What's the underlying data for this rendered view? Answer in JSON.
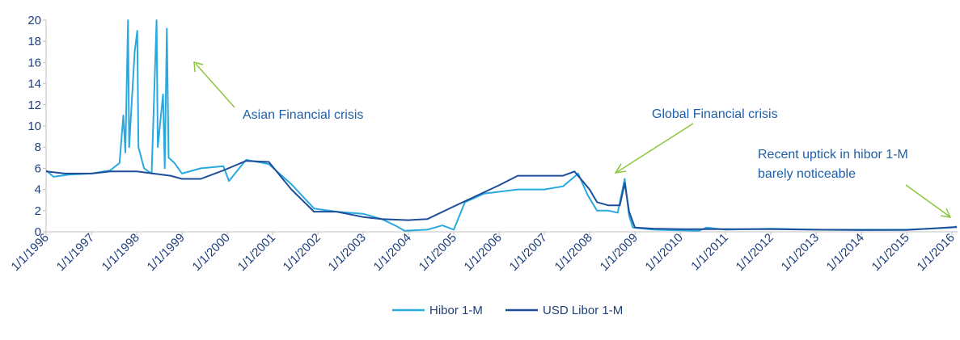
{
  "chart_data": {
    "type": "line",
    "xlim": [
      "1996-01-01",
      "2016-02-15"
    ],
    "xticks": [
      {
        "value": "1996-01-01",
        "label": "1/1/1996"
      },
      {
        "value": "1997-01-01",
        "label": "1/1/1997"
      },
      {
        "value": "1998-01-01",
        "label": "1/1/1998"
      },
      {
        "value": "1999-01-01",
        "label": "1/1/1999"
      },
      {
        "value": "2000-01-01",
        "label": "1/1/2000"
      },
      {
        "value": "2001-01-01",
        "label": "1/1/2001"
      },
      {
        "value": "2002-01-01",
        "label": "1/1/2002"
      },
      {
        "value": "2003-01-01",
        "label": "1/1/2003"
      },
      {
        "value": "2004-01-01",
        "label": "1/1/2004"
      },
      {
        "value": "2005-01-01",
        "label": "1/1/2005"
      },
      {
        "value": "2006-01-01",
        "label": "1/1/2006"
      },
      {
        "value": "2007-01-01",
        "label": "1/1/2007"
      },
      {
        "value": "2008-01-01",
        "label": "1/1/2008"
      },
      {
        "value": "2009-01-01",
        "label": "1/1/2009"
      },
      {
        "value": "2010-01-01",
        "label": "1/1/2010"
      },
      {
        "value": "2011-01-01",
        "label": "1/1/2011"
      },
      {
        "value": "2012-01-01",
        "label": "1/1/2012"
      },
      {
        "value": "2013-01-01",
        "label": "1/1/2013"
      },
      {
        "value": "2014-01-01",
        "label": "1/1/2014"
      },
      {
        "value": "2015-01-01",
        "label": "1/1/2015"
      },
      {
        "value": "2016-01-01",
        "label": "1/1/2016"
      }
    ],
    "ylim": [
      0,
      20
    ],
    "yticks": [
      0,
      2,
      4,
      6,
      8,
      10,
      12,
      14,
      16,
      18,
      20
    ],
    "grid": false,
    "legend": "bottom",
    "annotations": [
      "Asian Financial crisis",
      "Global Financial crisis",
      "Recent uptick in hibor 1-M",
      "barely noticeable"
    ],
    "series": [
      {
        "name": "Hibor 1-M",
        "color": "#29a9e0",
        "x": [
          "1996-01-01",
          "1996-03-01",
          "1996-07-01",
          "1997-01-01",
          "1997-06-01",
          "1997-08-15",
          "1997-09-15",
          "1997-10-01",
          "1997-10-23",
          "1997-11-01",
          "1997-12-15",
          "1998-01-05",
          "1998-01-15",
          "1998-03-01",
          "1998-05-01",
          "1998-06-10",
          "1998-06-20",
          "1998-08-01",
          "1998-08-15",
          "1998-09-01",
          "1998-09-15",
          "1998-11-01",
          "1999-01-01",
          "1999-06-01",
          "1999-12-01",
          "2000-01-15",
          "2000-06-01",
          "2000-12-01",
          "2001-06-01",
          "2001-12-01",
          "2002-06-01",
          "2003-01-01",
          "2003-06-01",
          "2003-10-01",
          "2003-12-01",
          "2004-06-01",
          "2004-10-01",
          "2005-01-01",
          "2005-04-01",
          "2005-09-01",
          "2006-06-01",
          "2007-01-01",
          "2007-06-01",
          "2007-10-01",
          "2007-12-15",
          "2008-03-01",
          "2008-06-01",
          "2008-08-15",
          "2008-10-10",
          "2008-11-15",
          "2008-12-15",
          "2009-06-01",
          "2010-06-01",
          "2010-08-01",
          "2011-01-01",
          "2012-01-01",
          "2013-01-01",
          "2014-01-01",
          "2015-01-01",
          "2016-01-01",
          "2016-02-10"
        ],
        "values": [
          5.8,
          5.2,
          5.4,
          5.5,
          5.8,
          6.5,
          11.0,
          7.5,
          20,
          8,
          17,
          19,
          8,
          6,
          5.5,
          20,
          8,
          13,
          6,
          19.2,
          7,
          6.5,
          5.5,
          6,
          6.2,
          4.8,
          6.8,
          6.4,
          4.5,
          2.2,
          1.9,
          1.7,
          1.2,
          0.5,
          0.1,
          0.2,
          0.6,
          0.2,
          2.8,
          3.6,
          4.0,
          4.0,
          4.3,
          5.5,
          3.5,
          2.0,
          2.0,
          1.8,
          5.0,
          1.5,
          0.4,
          0.2,
          0.1,
          0.4,
          0.2,
          0.3,
          0.2,
          0.2,
          0.2,
          0.4,
          0.5
        ]
      },
      {
        "name": "USD Libor 1-M",
        "color": "#1f4e99",
        "x": [
          "1996-01-01",
          "1996-06-01",
          "1997-01-01",
          "1997-06-01",
          "1998-01-01",
          "1998-10-01",
          "1999-01-01",
          "1999-06-01",
          "1999-12-01",
          "2000-06-01",
          "2000-12-01",
          "2001-06-01",
          "2001-12-01",
          "2002-06-01",
          "2003-01-01",
          "2003-06-01",
          "2004-01-01",
          "2004-06-01",
          "2005-01-01",
          "2006-01-01",
          "2006-06-01",
          "2007-06-01",
          "2007-09-01",
          "2008-01-01",
          "2008-03-01",
          "2008-06-01",
          "2008-09-01",
          "2008-10-10",
          "2008-11-15",
          "2009-01-01",
          "2009-06-01",
          "2010-01-01",
          "2011-01-01",
          "2012-01-01",
          "2013-01-01",
          "2014-01-01",
          "2015-01-01",
          "2016-01-01",
          "2016-02-10"
        ],
        "values": [
          5.7,
          5.5,
          5.5,
          5.7,
          5.7,
          5.3,
          5.0,
          5.0,
          5.8,
          6.7,
          6.6,
          4.0,
          1.9,
          1.9,
          1.4,
          1.2,
          1.1,
          1.2,
          2.4,
          4.4,
          5.3,
          5.3,
          5.7,
          4.0,
          2.8,
          2.5,
          2.5,
          4.6,
          1.9,
          0.4,
          0.3,
          0.25,
          0.25,
          0.25,
          0.2,
          0.16,
          0.17,
          0.43,
          0.44
        ]
      }
    ]
  }
}
